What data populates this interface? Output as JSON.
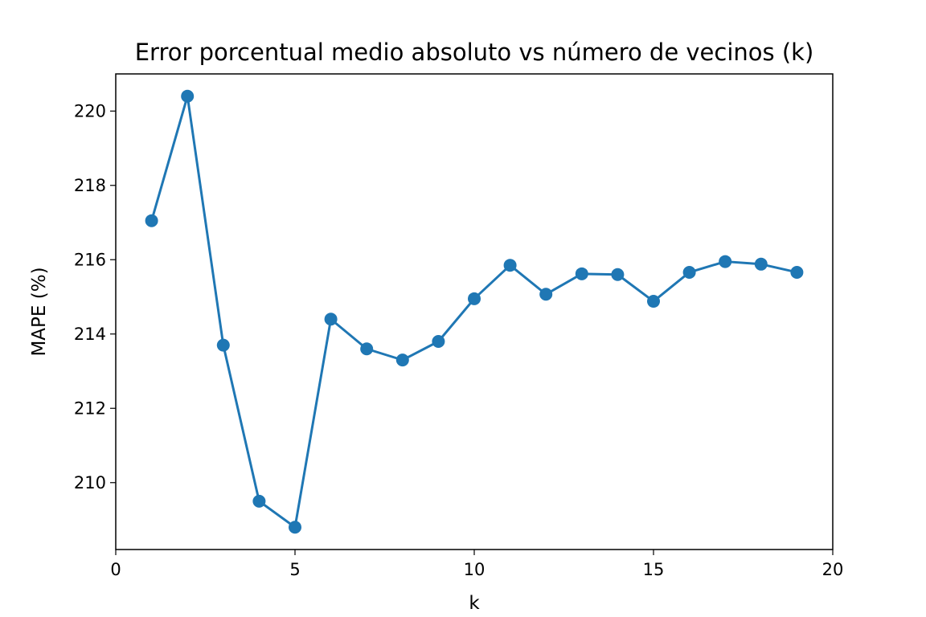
{
  "chart_data": {
    "type": "line",
    "title": "Error porcentual medio absoluto vs número de vecinos (k)",
    "xlabel": "k",
    "ylabel": "MAPE (%)",
    "xlim": [
      0,
      20
    ],
    "ylim": [
      208.2,
      221.0
    ],
    "xticks": [
      0,
      5,
      10,
      15,
      20
    ],
    "yticks": [
      210,
      212,
      214,
      216,
      218,
      220
    ],
    "grid": false,
    "series_color": "#1f77b4",
    "marker": "circle",
    "series": [
      {
        "x": [
          1,
          2,
          3,
          4,
          5,
          6,
          7,
          8,
          9,
          10,
          11,
          12,
          13,
          14,
          15,
          16,
          17,
          18,
          19
        ],
        "values": [
          217.05,
          220.4,
          213.7,
          209.5,
          208.8,
          214.4,
          213.6,
          213.3,
          213.8,
          214.95,
          215.85,
          215.07,
          215.62,
          215.6,
          214.88,
          215.66,
          215.95,
          215.88,
          215.66
        ]
      }
    ]
  }
}
